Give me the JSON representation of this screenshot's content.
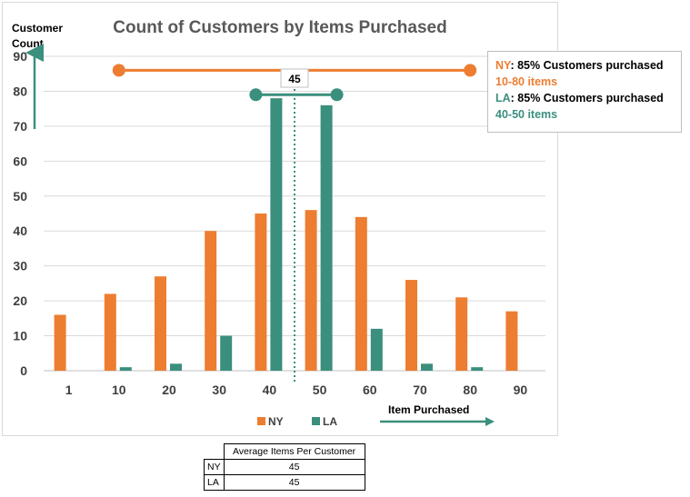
{
  "chart_data": {
    "type": "bar",
    "title": "Count of Customers by Items Purchased",
    "ylabel": [
      "Customer",
      "Count"
    ],
    "xlabel": "Item Purchased",
    "categories": [
      "1",
      "10",
      "20",
      "30",
      "40",
      "50",
      "60",
      "70",
      "80",
      "90"
    ],
    "ylim": [
      0,
      90
    ],
    "yticks": [
      0,
      10,
      20,
      30,
      40,
      50,
      60,
      70,
      80,
      90
    ],
    "grid": true,
    "legend_position": "bottom",
    "series": [
      {
        "name": "NY",
        "color": "#ed7d31",
        "values": [
          16,
          22,
          27,
          40,
          45,
          46,
          44,
          26,
          21,
          17
        ]
      },
      {
        "name": "LA",
        "color": "#3a8f7d",
        "values": [
          0,
          1,
          2,
          10,
          78,
          76,
          12,
          2,
          1,
          0
        ]
      }
    ],
    "annotations": {
      "ny_range": {
        "from": "10",
        "to": "80",
        "y": 86,
        "color": "#ed7d31"
      },
      "la_range": {
        "from": "40",
        "to": "50",
        "y": 79,
        "color": "#3a8f7d"
      },
      "mean_line": {
        "x": 45,
        "label": "45"
      }
    }
  },
  "note": {
    "ny_prefix": "NY",
    "ny_text": ": 85% Customers purchased",
    "ny_range": "10-80 items",
    "la_prefix": "LA",
    "la_text": ": 85% Customers purchased",
    "la_range": "40-50 items"
  },
  "avg_table": {
    "header": "Average Items Per Customer",
    "rows": [
      {
        "label": "NY",
        "value": "45"
      },
      {
        "label": "LA",
        "value": "45"
      }
    ]
  }
}
